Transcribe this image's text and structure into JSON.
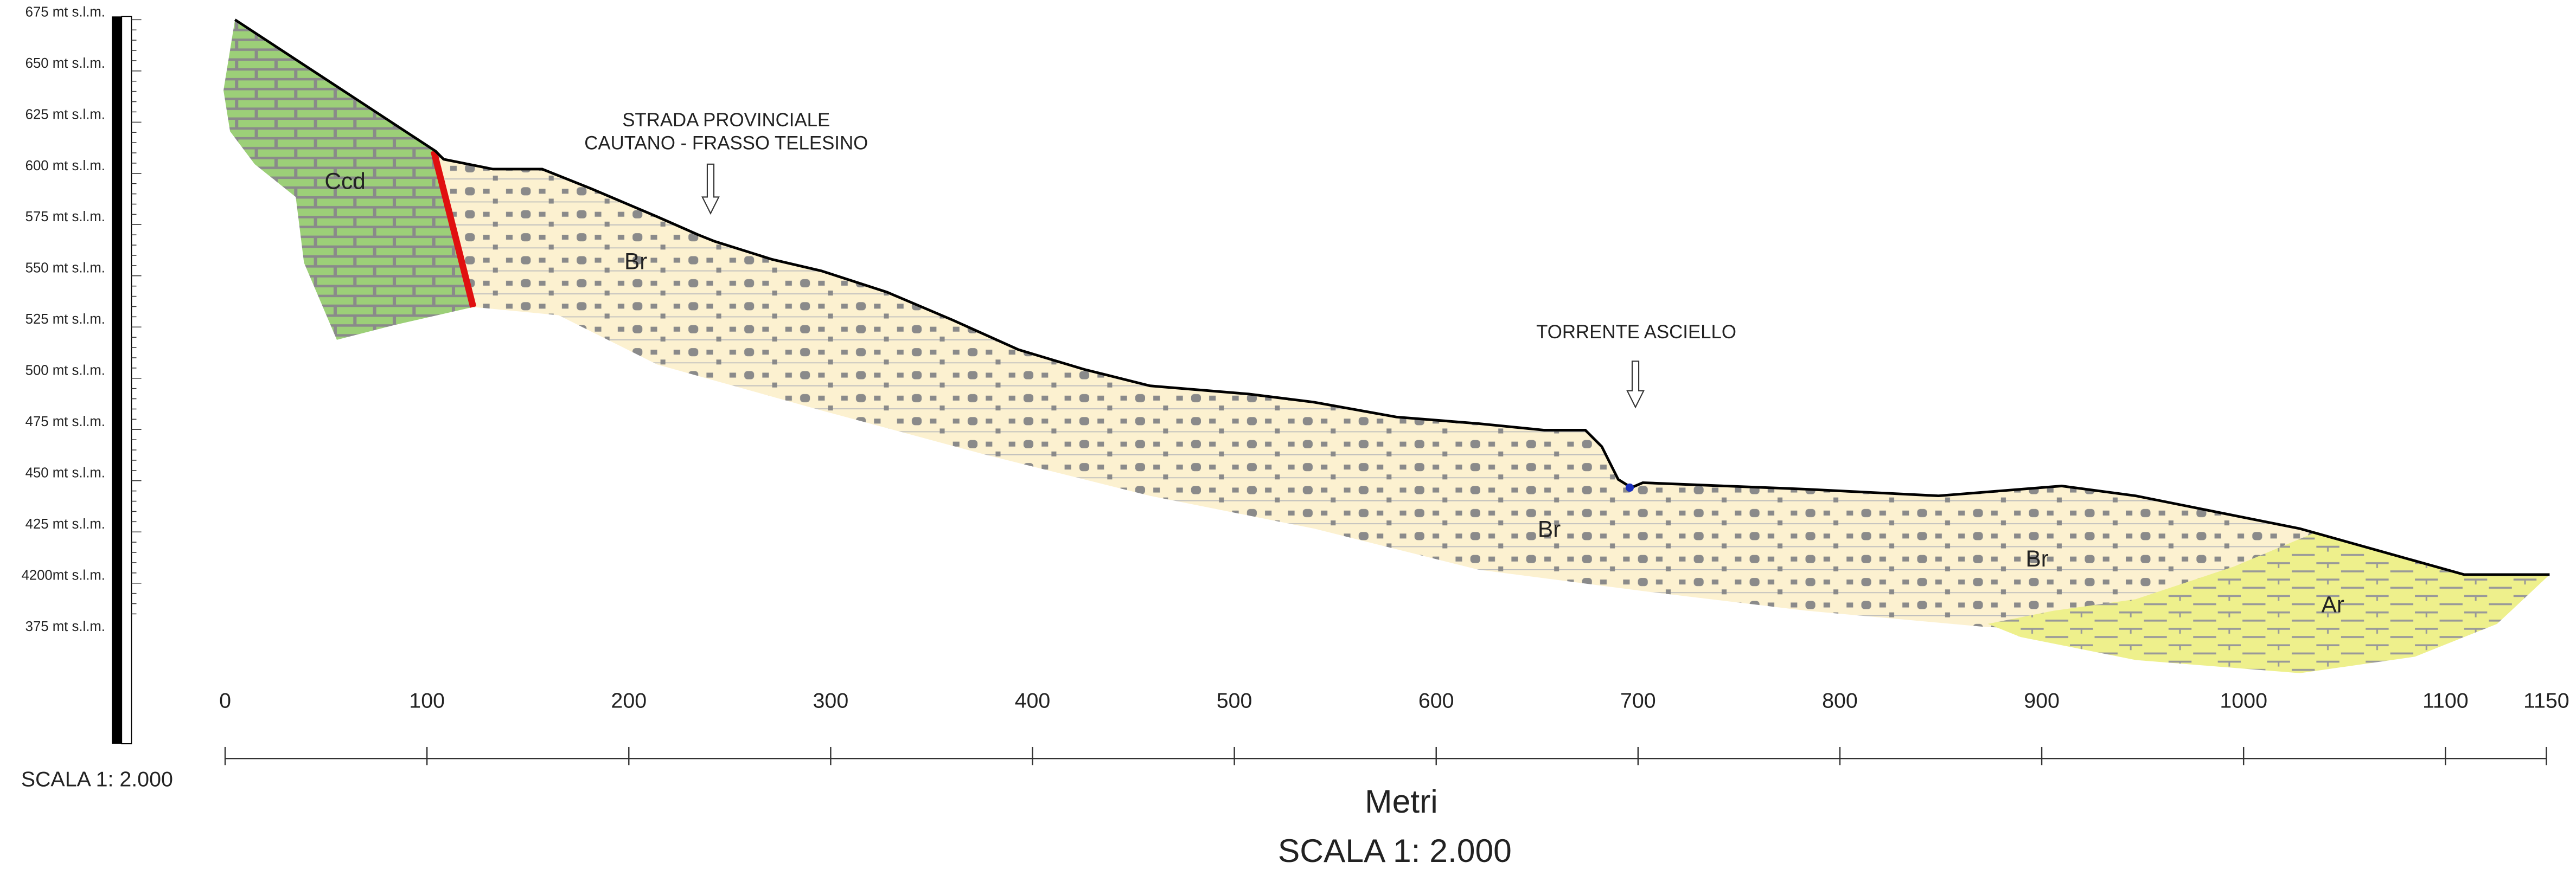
{
  "elevation_labels": [
    "675 mt s.l.m.",
    "650 mt s.l.m.",
    "625 mt s.l.m.",
    "600 mt s.l.m.",
    "575 mt s.l.m.",
    "550 mt s.l.m.",
    "525 mt s.l.m.",
    "500 mt s.l.m.",
    "475 mt s.l.m.",
    "450 mt s.l.m.",
    "425 mt s.l.m.",
    "4200mt s.l.m.",
    "375 mt s.l.m."
  ],
  "distance_axis": {
    "ticks": [
      0,
      100,
      200,
      300,
      400,
      500,
      600,
      700,
      800,
      900,
      1000,
      1100,
      1150
    ],
    "label": "Metri"
  },
  "scale_left": "SCALA 1: 2.000",
  "scale_bottom": "SCALA 1: 2.000",
  "annotations": [
    {
      "lines": [
        "STRADA PROVINCIALE",
        "CAUTANO - FRASSO TELESINO"
      ]
    },
    {
      "lines": [
        "TORRENTE ASCIELLO"
      ]
    }
  ],
  "units": [
    {
      "label": "Ccd"
    },
    {
      "label": "Br"
    },
    {
      "label": "Br"
    },
    {
      "label": "Br"
    },
    {
      "label": "Ar"
    }
  ]
}
